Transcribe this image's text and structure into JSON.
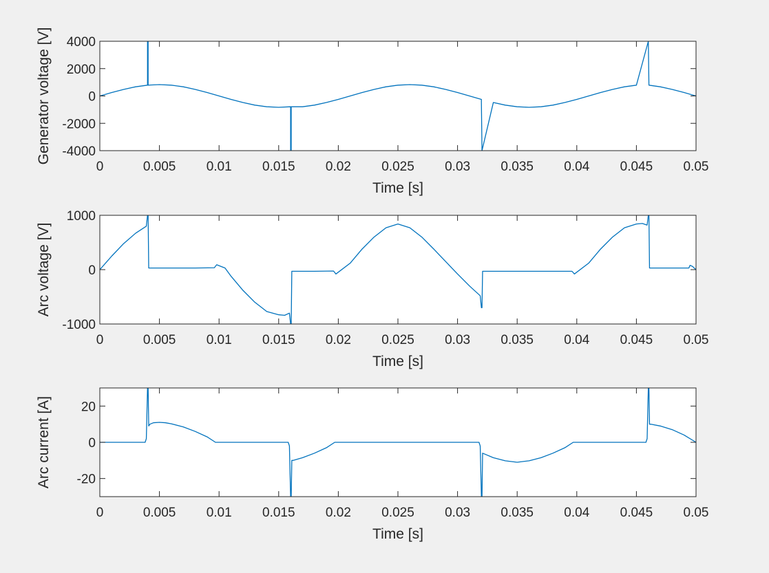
{
  "chart_data": [
    {
      "type": "line",
      "xlabel": "Time [s]",
      "ylabel": "Generator voltage [V]",
      "xlim": [
        0,
        0.05
      ],
      "ylim": [
        -4000,
        4000
      ],
      "grid": false,
      "line_color": "#0072BD",
      "x_ticks": [
        {
          "v": 0,
          "label": "0"
        },
        {
          "v": 0.005,
          "label": "0.005"
        },
        {
          "v": 0.01,
          "label": "0.01"
        },
        {
          "v": 0.015,
          "label": "0.015"
        },
        {
          "v": 0.02,
          "label": "0.02"
        },
        {
          "v": 0.025,
          "label": "0.025"
        },
        {
          "v": 0.03,
          "label": "0.03"
        },
        {
          "v": 0.035,
          "label": "0.035"
        },
        {
          "v": 0.04,
          "label": "0.04"
        },
        {
          "v": 0.045,
          "label": "0.045"
        },
        {
          "v": 0.05,
          "label": "0.05"
        }
      ],
      "y_ticks": [
        {
          "v": 4000,
          "label": "4000"
        },
        {
          "v": 2000,
          "label": "2000"
        },
        {
          "v": 0,
          "label": "0"
        },
        {
          "v": -2000,
          "label": "-2000"
        },
        {
          "v": -4000,
          "label": "-4000"
        }
      ],
      "series": [
        {
          "x": [
            0,
            0.001,
            0.002,
            0.003,
            0.004,
            0.004,
            0.00405,
            0.00405,
            0.0042,
            0.005,
            0.006,
            0.007,
            0.008,
            0.009,
            0.01,
            0.011,
            0.012,
            0.013,
            0.014,
            0.015,
            0.016,
            0.016,
            0.01605,
            0.01605,
            0.017,
            0.018,
            0.019,
            0.02,
            0.021,
            0.022,
            0.023,
            0.024,
            0.025,
            0.026,
            0.027,
            0.028,
            0.029,
            0.03,
            0.031,
            0.032,
            0.032,
            0.03205,
            0.03205,
            0.033,
            0.034,
            0.035,
            0.036,
            0.037,
            0.038,
            0.039,
            0.04,
            0.041,
            0.042,
            0.043,
            0.044,
            0.045,
            0.046,
            0.046,
            0.04605,
            0.04605,
            0.047,
            0.048,
            0.049,
            0.05
          ],
          "y": [
            0,
            250,
            480,
            670,
            790,
            4000,
            4000,
            790,
            800,
            830,
            790,
            670,
            480,
            250,
            0,
            -250,
            -480,
            -670,
            -790,
            -830,
            -790,
            -4000,
            -4000,
            -790,
            -790,
            -670,
            -480,
            -250,
            0,
            250,
            480,
            670,
            790,
            830,
            790,
            670,
            480,
            250,
            0,
            -250,
            -480,
            -4000,
            -4000,
            -480,
            -670,
            -790,
            -830,
            -790,
            -670,
            -480,
            -250,
            0,
            250,
            480,
            670,
            790,
            4000,
            4000,
            790,
            790,
            670,
            480,
            250,
            0
          ]
        }
      ]
    },
    {
      "type": "line",
      "xlabel": "Time [s]",
      "ylabel": "Arc voltage [V]",
      "xlim": [
        0,
        0.05
      ],
      "ylim": [
        -1000,
        1000
      ],
      "grid": false,
      "line_color": "#0072BD",
      "x_ticks": [
        {
          "v": 0,
          "label": "0"
        },
        {
          "v": 0.005,
          "label": "0.005"
        },
        {
          "v": 0.01,
          "label": "0.01"
        },
        {
          "v": 0.015,
          "label": "0.015"
        },
        {
          "v": 0.02,
          "label": "0.02"
        },
        {
          "v": 0.025,
          "label": "0.025"
        },
        {
          "v": 0.03,
          "label": "0.03"
        },
        {
          "v": 0.035,
          "label": "0.035"
        },
        {
          "v": 0.04,
          "label": "0.04"
        },
        {
          "v": 0.045,
          "label": "0.045"
        },
        {
          "v": 0.05,
          "label": "0.05"
        }
      ],
      "y_ticks": [
        {
          "v": 1000,
          "label": "1000"
        },
        {
          "v": 0,
          "label": "0"
        },
        {
          "v": -1000,
          "label": "-1000"
        }
      ],
      "series": [
        {
          "x": [
            0,
            0.001,
            0.002,
            0.003,
            0.0039,
            0.004,
            0.00405,
            0.0041,
            0.0043,
            0.006,
            0.008,
            0.0096,
            0.0098,
            0.0105,
            0.011,
            0.012,
            0.013,
            0.014,
            0.015,
            0.0155,
            0.0159,
            0.016,
            0.01605,
            0.0161,
            0.01615,
            0.018,
            0.0196,
            0.0198,
            0.021,
            0.022,
            0.023,
            0.024,
            0.025,
            0.026,
            0.027,
            0.028,
            0.029,
            0.03,
            0.031,
            0.0319,
            0.032,
            0.03205,
            0.0321,
            0.0323,
            0.035,
            0.0396,
            0.0398,
            0.041,
            0.042,
            0.043,
            0.044,
            0.045,
            0.0455,
            0.0459,
            0.046,
            0.04605,
            0.0461,
            0.0463,
            0.048,
            0.0494,
            0.0495,
            0.0497,
            0.05
          ],
          "y": [
            0,
            250,
            480,
            670,
            800,
            1000,
            1000,
            30,
            30,
            30,
            30,
            35,
            90,
            30,
            -120,
            -380,
            -600,
            -770,
            -830,
            -840,
            -800,
            -1000,
            -1000,
            -30,
            -30,
            -30,
            -25,
            -80,
            120,
            380,
            600,
            770,
            840,
            770,
            600,
            380,
            150,
            -80,
            -300,
            -480,
            -700,
            -700,
            -30,
            -30,
            -30,
            -30,
            -80,
            120,
            380,
            600,
            770,
            840,
            850,
            820,
            1000,
            1000,
            30,
            30,
            30,
            30,
            80,
            60,
            0
          ]
        }
      ]
    },
    {
      "type": "line",
      "xlabel": "Time [s]",
      "ylabel": "Arc current [A]",
      "xlim": [
        0,
        0.05
      ],
      "ylim": [
        -30,
        30
      ],
      "grid": false,
      "line_color": "#0072BD",
      "x_ticks": [
        {
          "v": 0,
          "label": "0"
        },
        {
          "v": 0.005,
          "label": "0.005"
        },
        {
          "v": 0.01,
          "label": "0.01"
        },
        {
          "v": 0.015,
          "label": "0.015"
        },
        {
          "v": 0.02,
          "label": "0.02"
        },
        {
          "v": 0.025,
          "label": "0.025"
        },
        {
          "v": 0.03,
          "label": "0.03"
        },
        {
          "v": 0.035,
          "label": "0.035"
        },
        {
          "v": 0.04,
          "label": "0.04"
        },
        {
          "v": 0.045,
          "label": "0.045"
        },
        {
          "v": 0.05,
          "label": "0.05"
        }
      ],
      "y_ticks": [
        {
          "v": 20,
          "label": "20"
        },
        {
          "v": 0,
          "label": "0"
        },
        {
          "v": -20,
          "label": "-20"
        }
      ],
      "series": [
        {
          "x": [
            0,
            0.0038,
            0.0039,
            0.004,
            0.00405,
            0.0041,
            0.0042,
            0.0045,
            0.005,
            0.0055,
            0.006,
            0.007,
            0.008,
            0.009,
            0.0097,
            0.01,
            0.0158,
            0.0159,
            0.016,
            0.01605,
            0.0161,
            0.0162,
            0.017,
            0.018,
            0.019,
            0.0197,
            0.02,
            0.0318,
            0.0319,
            0.032,
            0.03205,
            0.0321,
            0.033,
            0.034,
            0.035,
            0.036,
            0.037,
            0.038,
            0.039,
            0.0397,
            0.04,
            0.0458,
            0.0459,
            0.046,
            0.04605,
            0.0461,
            0.0462,
            0.047,
            0.048,
            0.049,
            0.05
          ],
          "y": [
            0,
            0,
            2,
            30,
            30,
            9,
            10,
            10.8,
            11,
            10.8,
            10.2,
            8.5,
            6,
            3,
            0,
            0,
            0,
            -2,
            -30,
            -30,
            -10,
            -10,
            -8.5,
            -6,
            -3,
            0,
            0,
            0,
            -2,
            -30,
            -30,
            -6,
            -8.5,
            -10.2,
            -11,
            -10.2,
            -8.5,
            -6,
            -3,
            0,
            0,
            0,
            2,
            30,
            30,
            10,
            10,
            9,
            7,
            4,
            0
          ]
        }
      ]
    }
  ]
}
